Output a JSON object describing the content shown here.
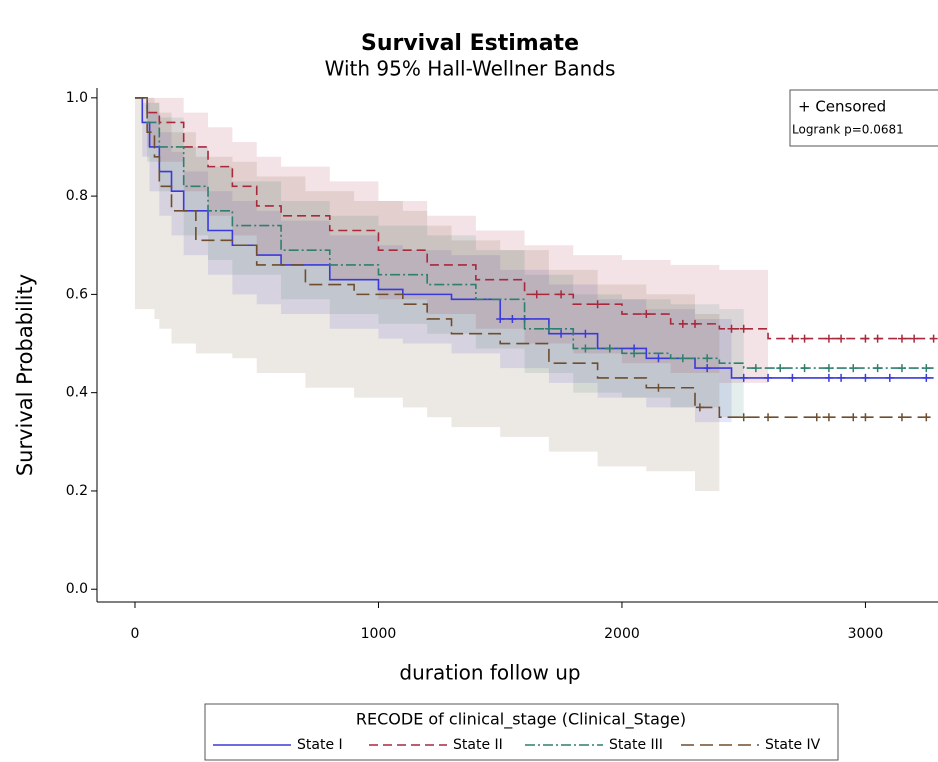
{
  "chart_data": {
    "type": "survival",
    "title": "Survival Estimate",
    "subtitle": "With 95% Hall-Wellner Bands",
    "x_label": "duration follow up",
    "y_label": "Survival Probability",
    "xlim": [
      -156,
      3298
    ],
    "ylim": [
      -0.026,
      1.02
    ],
    "xticks": [
      0,
      1000,
      2000,
      3000
    ],
    "yticks": [
      {
        "value": 0,
        "label": "0.0"
      },
      {
        "value": 0.2,
        "label": "0.2"
      },
      {
        "value": 0.4,
        "label": "0.4"
      },
      {
        "value": 0.6,
        "label": "0.6"
      },
      {
        "value": 0.8,
        "label": "0.8"
      },
      {
        "value": 1,
        "label": "1.0"
      }
    ],
    "inset": {
      "censored_label": "+ Censored",
      "test": "Logrank p=0.0681"
    },
    "legend_title": "RECODE of clinical_stage (Clinical_Stage)",
    "series": [
      {
        "name": "State I",
        "color": "#3a3adb",
        "dash": [],
        "x": [
          0,
          30,
          60,
          100,
          150,
          200,
          300,
          400,
          500,
          600,
          800,
          1000,
          1100,
          1300,
          1500,
          1700,
          1900,
          2100,
          2300,
          2450,
          3280
        ],
        "values": [
          1.0,
          0.95,
          0.9,
          0.85,
          0.81,
          0.77,
          0.73,
          0.7,
          0.68,
          0.66,
          0.63,
          0.61,
          0.6,
          0.59,
          0.55,
          0.52,
          0.49,
          0.47,
          0.45,
          0.43,
          0.43
        ],
        "lower": [
          1.0,
          0.88,
          0.81,
          0.76,
          0.72,
          0.68,
          0.64,
          0.6,
          0.58,
          0.56,
          0.53,
          0.51,
          0.5,
          0.48,
          0.45,
          0.42,
          0.39,
          0.37,
          0.34,
          null,
          null
        ],
        "upper": [
          1.0,
          0.99,
          0.97,
          0.93,
          0.89,
          0.85,
          0.81,
          0.79,
          0.77,
          0.75,
          0.72,
          0.7,
          0.69,
          0.68,
          0.65,
          0.62,
          0.59,
          0.57,
          0.55,
          null,
          null
        ],
        "censored_x": [
          1500,
          1550,
          1600,
          1750,
          1850,
          1950,
          2050,
          2150,
          2350,
          2500,
          2600,
          2700,
          2850,
          2900,
          3000,
          3100,
          3250
        ],
        "censored_values": [
          0.55,
          0.55,
          0.55,
          0.52,
          0.52,
          0.49,
          0.49,
          0.47,
          0.45,
          0.43,
          0.43,
          0.43,
          0.43,
          0.43,
          0.43,
          0.43,
          0.43
        ]
      },
      {
        "name": "State II",
        "color": "#a8283c",
        "dash": [
          9,
          5
        ],
        "x": [
          0,
          50,
          100,
          200,
          300,
          400,
          500,
          600,
          800,
          1000,
          1200,
          1400,
          1600,
          1800,
          2000,
          2200,
          2400,
          2600,
          3280
        ],
        "values": [
          1.0,
          0.97,
          0.95,
          0.9,
          0.86,
          0.82,
          0.78,
          0.76,
          0.73,
          0.69,
          0.66,
          0.63,
          0.6,
          0.58,
          0.56,
          0.54,
          0.53,
          0.51,
          0.51
        ],
        "lower": [
          1.0,
          0.9,
          0.87,
          0.81,
          0.76,
          0.72,
          0.68,
          0.66,
          0.63,
          0.59,
          0.56,
          0.53,
          0.5,
          0.48,
          0.46,
          0.44,
          0.42,
          null,
          null
        ],
        "upper": [
          1.0,
          1.0,
          1.0,
          0.97,
          0.94,
          0.91,
          0.88,
          0.86,
          0.83,
          0.79,
          0.76,
          0.73,
          0.7,
          0.68,
          0.67,
          0.66,
          0.65,
          null,
          null
        ],
        "censored_x": [
          1650,
          1750,
          1900,
          2100,
          2250,
          2300,
          2450,
          2500,
          2700,
          2750,
          2850,
          2900,
          3000,
          3050,
          3150,
          3200,
          3280
        ],
        "censored_values": [
          0.6,
          0.6,
          0.58,
          0.56,
          0.54,
          0.54,
          0.53,
          0.53,
          0.51,
          0.51,
          0.51,
          0.51,
          0.51,
          0.51,
          0.51,
          0.51,
          0.51
        ]
      },
      {
        "name": "State III",
        "color": "#2e7f6e",
        "dash": [
          10,
          3,
          2,
          3
        ],
        "x": [
          0,
          50,
          100,
          200,
          300,
          400,
          600,
          800,
          1000,
          1200,
          1400,
          1600,
          1800,
          2000,
          2200,
          2400,
          2500,
          3280
        ],
        "values": [
          1.0,
          0.95,
          0.9,
          0.82,
          0.77,
          0.74,
          0.69,
          0.66,
          0.64,
          0.62,
          0.59,
          0.53,
          0.49,
          0.48,
          0.47,
          0.46,
          0.45,
          0.45
        ],
        "lower": [
          1.0,
          0.87,
          0.81,
          0.72,
          0.67,
          0.64,
          0.59,
          0.56,
          0.54,
          0.52,
          0.49,
          0.44,
          0.4,
          0.39,
          0.37,
          0.35,
          null,
          null
        ],
        "upper": [
          1.0,
          0.99,
          0.96,
          0.9,
          0.86,
          0.83,
          0.79,
          0.76,
          0.74,
          0.72,
          0.69,
          0.64,
          0.6,
          0.59,
          0.58,
          0.57,
          null,
          null
        ],
        "censored_x": [
          1700,
          1850,
          1950,
          2050,
          2250,
          2350,
          2550,
          2650,
          2750,
          2850,
          2950,
          3050,
          3150,
          3250
        ],
        "censored_values": [
          0.53,
          0.49,
          0.49,
          0.48,
          0.47,
          0.47,
          0.45,
          0.45,
          0.45,
          0.45,
          0.45,
          0.45,
          0.45,
          0.45
        ]
      },
      {
        "name": "State IV",
        "color": "#6e4e2e",
        "dash": [
          13,
          6
        ],
        "x": [
          0,
          50,
          80,
          100,
          150,
          250,
          400,
          500,
          700,
          900,
          1100,
          1200,
          1300,
          1500,
          1700,
          1900,
          2100,
          2200,
          2300,
          2400,
          3280
        ],
        "values": [
          1.0,
          0.93,
          0.88,
          0.82,
          0.77,
          0.71,
          0.7,
          0.66,
          0.62,
          0.6,
          0.58,
          0.55,
          0.52,
          0.5,
          0.46,
          0.43,
          0.41,
          0.41,
          0.37,
          0.35,
          0.35
        ],
        "lower": [
          0.57,
          0.57,
          0.55,
          0.53,
          0.5,
          0.48,
          0.47,
          0.44,
          0.41,
          0.39,
          0.37,
          0.35,
          0.33,
          0.31,
          0.28,
          0.25,
          0.24,
          0.24,
          0.2,
          null,
          null
        ],
        "upper": [
          1.0,
          1.0,
          0.99,
          0.97,
          0.93,
          0.88,
          0.87,
          0.84,
          0.81,
          0.79,
          0.77,
          0.74,
          0.71,
          0.69,
          0.65,
          0.62,
          0.6,
          0.6,
          0.56,
          null,
          null
        ],
        "censored_x": [
          2150,
          2320,
          2500,
          2600,
          2800,
          2850,
          2950,
          3000,
          3150,
          3250
        ],
        "censored_values": [
          0.41,
          0.37,
          0.35,
          0.35,
          0.35,
          0.35,
          0.35,
          0.35,
          0.35,
          0.35
        ]
      }
    ]
  }
}
